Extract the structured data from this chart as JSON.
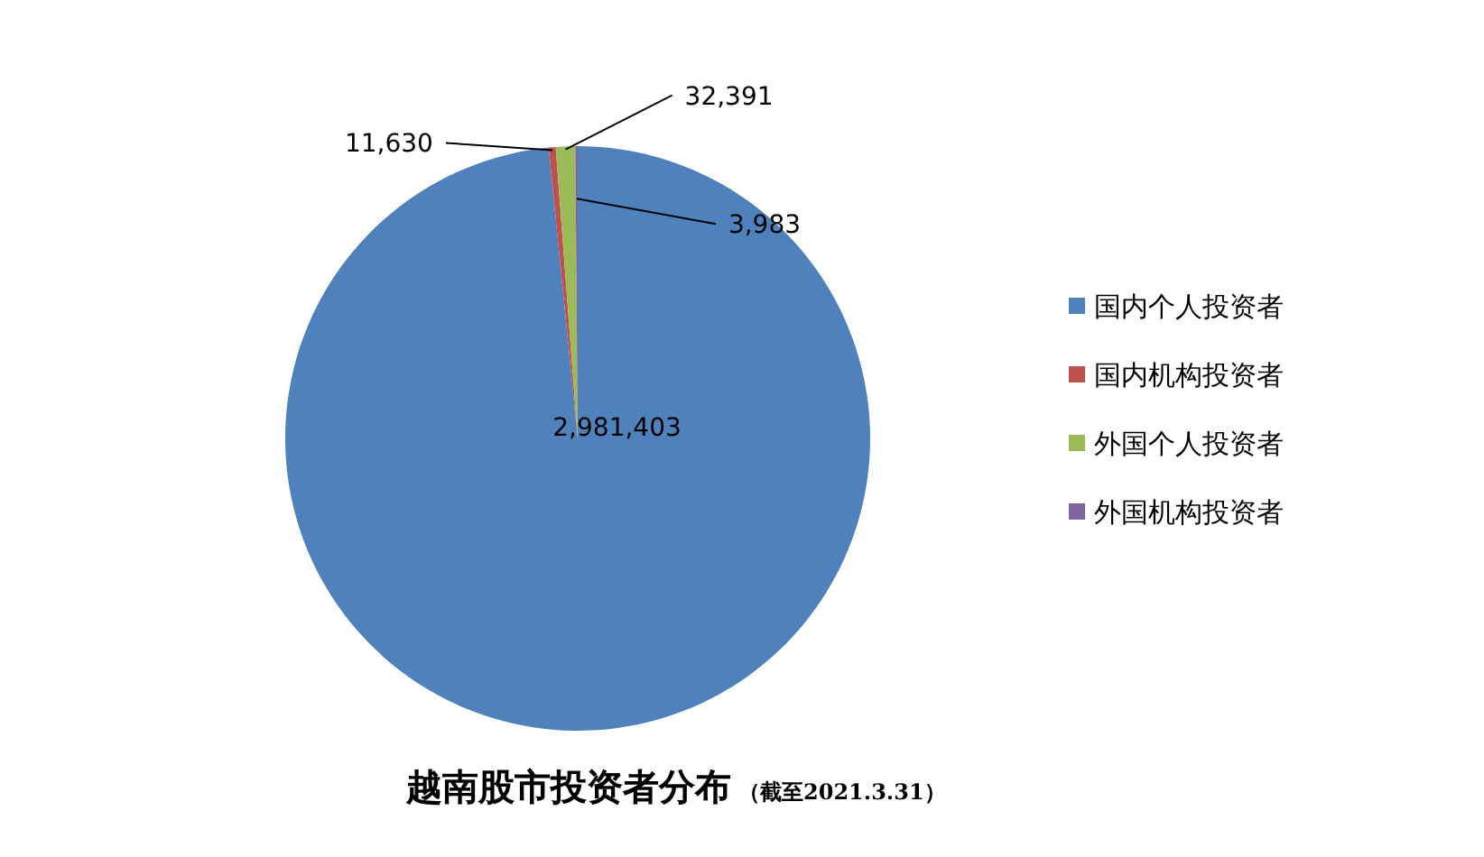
{
  "chart_data": {
    "type": "pie",
    "title": "越南股市投资者分布",
    "subtitle": "（截至2021.3.31）",
    "categories": [
      "国内个人投资者",
      "国内机构投资者",
      "外国个人投资者",
      "外国机构投资者"
    ],
    "values": [
      2981403,
      11630,
      32391,
      3983
    ],
    "colors": [
      "#4f81bd",
      "#c0504d",
      "#9bbb59",
      "#8064a2"
    ],
    "value_labels": [
      "2,981,403",
      "11,630",
      "32,391",
      "3,983"
    ],
    "legend": "right"
  }
}
